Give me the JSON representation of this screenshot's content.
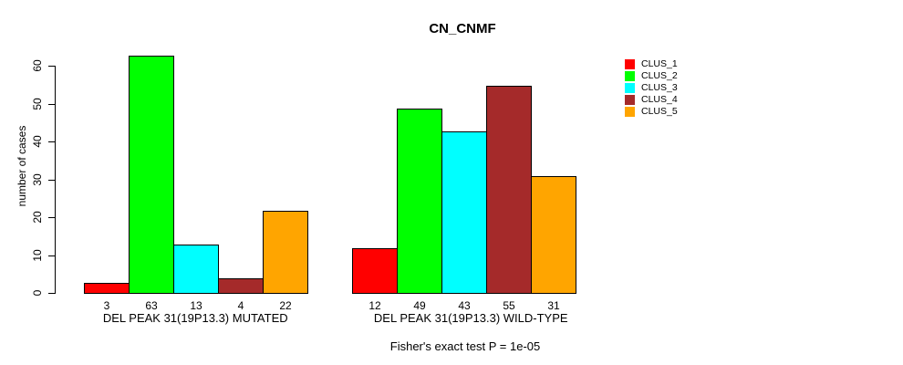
{
  "title": "CN_CNMF",
  "chart_data": {
    "type": "bar",
    "title": "CN_CNMF",
    "ylabel": "number of cases",
    "xlabel": "",
    "ylim": [
      0,
      60
    ],
    "yticks": [
      0,
      10,
      20,
      30,
      40,
      50,
      60
    ],
    "grid": false,
    "legend_position": "right",
    "categories": [
      "DEL PEAK 31(19P13.3) MUTATED",
      "DEL PEAK 31(19P13.3) WILD-TYPE"
    ],
    "series": [
      {
        "name": "CLUS_1",
        "color": "#FF0000",
        "values": [
          3,
          12
        ]
      },
      {
        "name": "CLUS_2",
        "color": "#00FF00",
        "values": [
          63,
          49
        ]
      },
      {
        "name": "CLUS_3",
        "color": "#00FFFF",
        "values": [
          13,
          43
        ]
      },
      {
        "name": "CLUS_4",
        "color": "#A52A2A",
        "values": [
          4,
          55
        ]
      },
      {
        "name": "CLUS_5",
        "color": "#FFA500",
        "values": [
          22,
          31
        ]
      }
    ],
    "bar_value_labels": true,
    "annotation": "Fisher's exact test P = 1e-05"
  }
}
